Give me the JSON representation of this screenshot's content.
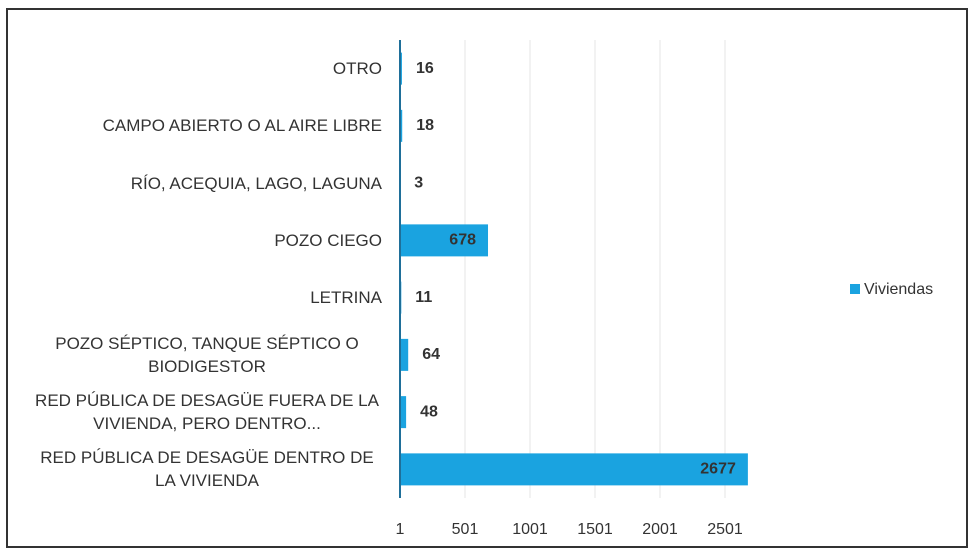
{
  "chart_data": {
    "type": "bar",
    "orientation": "horizontal",
    "categories": [
      "OTRO",
      "CAMPO ABIERTO O AL AIRE LIBRE",
      "RÍO, ACEQUIA, LAGO, LAGUNA",
      "POZO CIEGO",
      "LETRINA",
      "POZO SÉPTICO, TANQUE SÉPTICO O BIODIGESTOR",
      "RED PÚBLICA DE DESAGÜE FUERA DE LA VIVIENDA, PERO DENTRO...",
      "RED PÚBLICA DE DESAGÜE DENTRO DE LA VIVIENDA"
    ],
    "series": [
      {
        "name": "Viviendas",
        "color": "#1aa3e0",
        "values": [
          16,
          18,
          3,
          678,
          11,
          64,
          48,
          2677
        ]
      }
    ],
    "xlim": [
      1,
      3001
    ],
    "xticks": [
      1,
      501,
      1001,
      1501,
      2001,
      2501
    ],
    "grid": true,
    "legend": "right"
  }
}
